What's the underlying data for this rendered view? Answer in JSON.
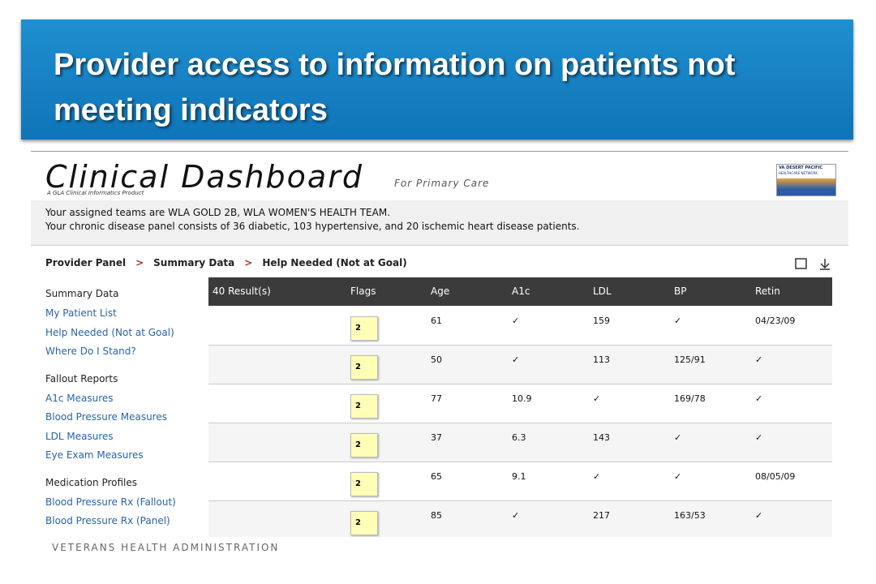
{
  "header": {
    "title": "Provider access to information on patients not meeting indicators"
  },
  "dashboard": {
    "title": "Clinical Dashboard",
    "subtitle": "For Primary Care",
    "tagline": "A GLA Clinical Informatics Product",
    "logo": [
      "VA DESERT PACIFIC",
      "HEALTHCARE NETWORK"
    ],
    "info": [
      "Your assigned teams are WLA GOLD 2B, WLA WOMEN'S HEALTH TEAM.",
      "Your chronic disease panel consists of 36 diabetic, 103 hypertensive, and 20 ischemic heart disease patients."
    ],
    "breadcrumb": [
      "Provider Panel",
      "Summary Data",
      "Help Needed (Not at Goal)"
    ]
  },
  "sidebar": [
    {
      "heading": "Summary Data",
      "links": [
        "My Patient List",
        "Help Needed (Not at Goal)",
        "Where Do I Stand?"
      ]
    },
    {
      "heading": "Fallout Reports",
      "links": [
        "A1c Measures",
        "Blood Pressure Measures",
        "LDL Measures",
        "Eye Exam Measures"
      ]
    },
    {
      "heading": "Medication Profiles",
      "links": [
        "Blood Pressure Rx (Fallout)",
        "Blood Pressure Rx (Panel)"
      ]
    }
  ],
  "table": {
    "columns": [
      "40 Result(s)",
      "Flags",
      "Age",
      "A1c",
      "LDL",
      "BP",
      "Retin"
    ],
    "rows": [
      [
        "2",
        "61",
        "✓",
        "159",
        "✓",
        "04/23/09"
      ],
      [
        "2",
        "50",
        "✓",
        "113",
        "125/91",
        "✓"
      ],
      [
        "2",
        "77",
        "10.9",
        "✓",
        "169/78",
        "✓"
      ],
      [
        "2",
        "37",
        "6.3",
        "143",
        "✓",
        "✓"
      ],
      [
        "2",
        "65",
        "9.1",
        "✓",
        "✓",
        "08/05/09"
      ],
      [
        "2",
        "85",
        "✓",
        "217",
        "163/53",
        "✓"
      ]
    ]
  },
  "footer": "VETERANS HEALTH ADMINISTRATION"
}
